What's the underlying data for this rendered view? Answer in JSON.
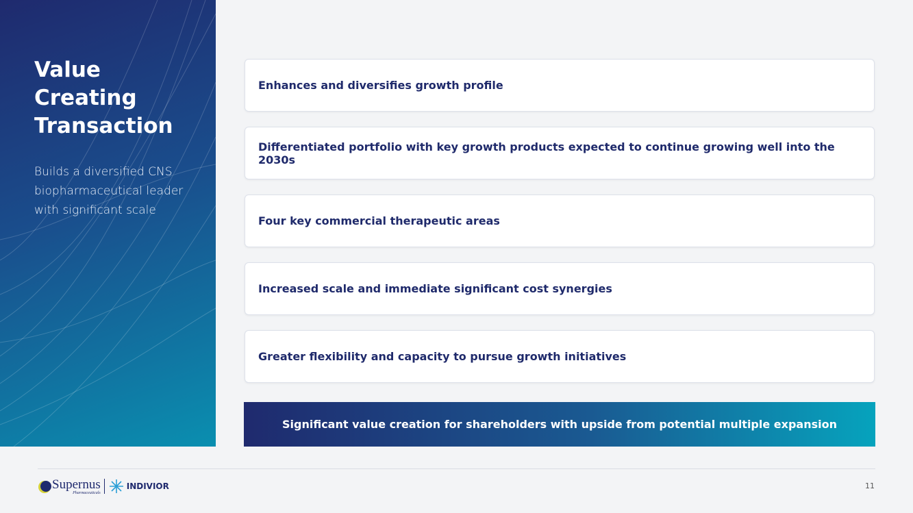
{
  "sidebar": {
    "title": "Value Creating Transaction",
    "subtitle": "Builds a diversified CNS biopharmaceutical leader with significant scale"
  },
  "items": [
    "Enhances and diversifies growth profile",
    "Differentiated portfolio with key growth products expected to continue growing well into the 2030s",
    "Four key commercial therapeutic areas",
    "Increased scale and immediate significant cost synergies",
    "Greater flexibility and capacity to pursue growth initiatives"
  ],
  "banner": "Significant value creation for shareholders with upside from potential multiple expansion",
  "footer": {
    "logo_left": "Supernus",
    "logo_left_sub": "Pharmaceuticals",
    "logo_right": "INDIVIOR",
    "page_number": 11
  }
}
